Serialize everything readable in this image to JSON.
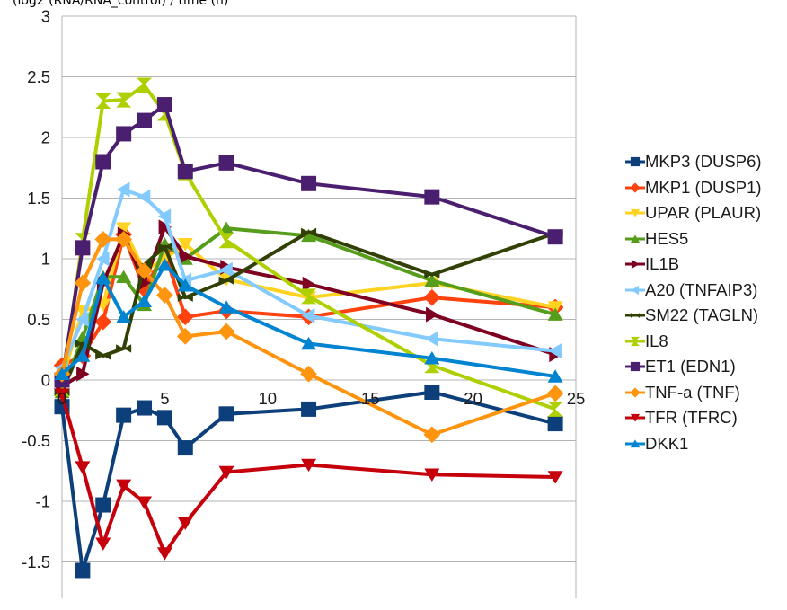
{
  "chart_data": {
    "type": "line",
    "title": "",
    "xlabel": "",
    "ylabel": "(log2 (RNA/RNA_control) / time (h)",
    "xlim": [
      0,
      25
    ],
    "ylim": [
      -1.8,
      3
    ],
    "xticks": [
      5,
      10,
      15,
      20,
      25
    ],
    "yticks": [
      -1.5,
      -1,
      -0.5,
      0,
      0.5,
      1,
      1.5,
      2,
      2.5,
      3
    ],
    "xtick_labels": [
      "5",
      "10",
      "15",
      "20",
      "25"
    ],
    "ytick_labels": [
      "-1.5",
      "-1",
      "-0.5",
      "0",
      "0.5",
      "1",
      "1.5",
      "2",
      "2.5",
      "3"
    ],
    "y_gridlines": true,
    "legend_position": "right",
    "x": [
      0,
      1,
      2,
      3,
      4,
      5,
      6,
      8,
      12,
      18,
      24
    ],
    "series": [
      {
        "name": "MKP3 (DUSP6)",
        "color": "#0d3f7a",
        "marker": "square",
        "values": [
          -0.22,
          -1.57,
          -1.03,
          -0.29,
          -0.23,
          -0.31,
          -0.56,
          -0.28,
          -0.24,
          -0.1,
          -0.36
        ]
      },
      {
        "name": "MKP1 (DUSP1)",
        "color": "#ff420e",
        "marker": "diamond",
        "values": [
          0.12,
          0.2,
          0.48,
          1.2,
          0.75,
          1.05,
          0.52,
          0.57,
          0.52,
          0.68,
          0.6
        ]
      },
      {
        "name": "UPAR (PLAUR)",
        "color": "#ffd320",
        "marker": "triangle-down",
        "values": [
          0.0,
          0.57,
          0.62,
          1.25,
          0.9,
          1.0,
          1.12,
          0.83,
          0.68,
          0.8,
          0.6
        ]
      },
      {
        "name": "HES5",
        "color": "#579d1c",
        "marker": "triangle-up",
        "values": [
          -0.1,
          0.35,
          0.85,
          0.85,
          0.62,
          1.12,
          1.0,
          1.25,
          1.19,
          0.82,
          0.54
        ]
      },
      {
        "name": "IL1B",
        "color": "#7e0021",
        "marker": "triangle-right",
        "values": [
          -0.05,
          0.05,
          0.8,
          1.2,
          0.8,
          1.26,
          1.02,
          0.93,
          0.79,
          0.54,
          0.21
        ]
      },
      {
        "name": "A20 (TNFAIP3)",
        "color": "#83caff",
        "marker": "triangle-left",
        "values": [
          0.1,
          0.5,
          1.0,
          1.57,
          1.51,
          1.35,
          0.82,
          0.91,
          0.53,
          0.34,
          0.24
        ]
      },
      {
        "name": "SM22 (TAGLN)",
        "color": "#314004",
        "marker": "star",
        "values": [
          -0.1,
          0.3,
          0.2,
          0.26,
          0.95,
          1.1,
          0.68,
          0.82,
          1.22,
          0.87,
          1.21
        ]
      },
      {
        "name": "IL8",
        "color": "#aecf00",
        "marker": "hourglass",
        "values": [
          -0.07,
          1.15,
          2.3,
          2.31,
          2.43,
          2.2,
          1.71,
          1.15,
          0.69,
          0.12,
          -0.24
        ]
      },
      {
        "name": "ET1 (EDN1)",
        "color": "#4b1f6f",
        "marker": "square",
        "values": [
          0.0,
          1.09,
          1.8,
          2.03,
          2.14,
          2.27,
          1.72,
          1.79,
          1.62,
          1.51,
          1.18
        ]
      },
      {
        "name": "TNF-a (TNF)",
        "color": "#ff950e",
        "marker": "diamond",
        "values": [
          0.05,
          0.8,
          1.16,
          1.16,
          0.9,
          0.7,
          0.36,
          0.4,
          0.05,
          -0.45,
          -0.11
        ]
      },
      {
        "name": "TFR (TFRC)",
        "color": "#c5000b",
        "marker": "triangle-down",
        "values": [
          -0.12,
          -0.72,
          -1.35,
          -0.87,
          -1.01,
          -1.43,
          -1.18,
          -0.76,
          -0.7,
          -0.78,
          -0.8
        ]
      },
      {
        "name": "DKK1",
        "color": "#0084d1",
        "marker": "triangle-up",
        "values": [
          0.05,
          0.2,
          0.84,
          0.52,
          0.65,
          0.95,
          0.78,
          0.6,
          0.3,
          0.18,
          0.03
        ]
      }
    ]
  }
}
